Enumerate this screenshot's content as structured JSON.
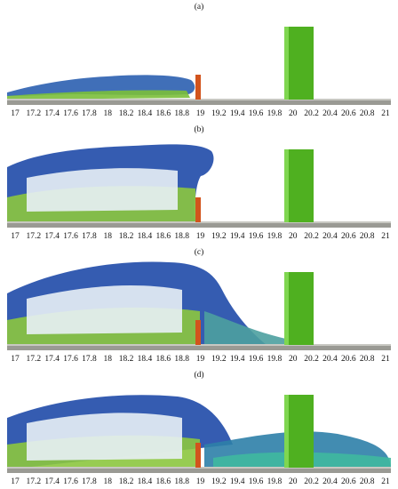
{
  "panels": [
    {
      "label": "(a)"
    },
    {
      "label": "(b)"
    },
    {
      "label": "(c)"
    },
    {
      "label": "(d)"
    }
  ],
  "x_axis": {
    "ticks": [
      17,
      17.2,
      17.4,
      17.6,
      17.8,
      18,
      18.2,
      18.4,
      18.6,
      18.8,
      19,
      19.2,
      19.4,
      19.6,
      19.8,
      20,
      20.2,
      20.4,
      20.6,
      20.8,
      21
    ]
  }
}
